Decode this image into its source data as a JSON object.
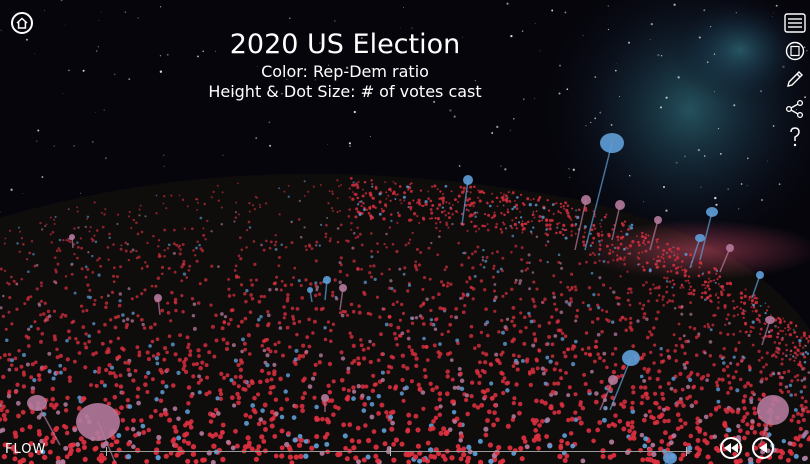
{
  "title": "2020 US Election",
  "legend": {
    "color": "Color: Rep-Dem ratio",
    "size": "Height & Dot Size: # of votes cast"
  },
  "logo": "FLOW",
  "icons": {
    "home": "home-icon",
    "menu": "hamburger-menu-icon",
    "view": "view-frame-icon",
    "edit": "pencil-icon",
    "share": "share-icon",
    "help": "question-icon",
    "rewind": "rewind-icon",
    "back": "play-back-icon"
  },
  "colors": {
    "republican": "#e03040",
    "democrat": "#5f9fd8",
    "mixed": "#b57a9c",
    "sky": "#060510",
    "ground": "#0d0c0b"
  }
}
